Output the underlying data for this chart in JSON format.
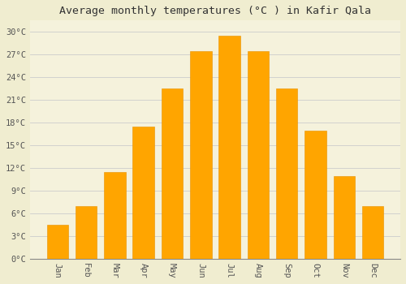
{
  "title": "Average monthly temperatures (°C ) in Kafir Qala",
  "months": [
    "Jan",
    "Feb",
    "Mar",
    "Apr",
    "May",
    "Jun",
    "Jul",
    "Aug",
    "Sep",
    "Oct",
    "Nov",
    "Dec"
  ],
  "values": [
    4.5,
    7.0,
    11.5,
    17.5,
    22.5,
    27.5,
    29.5,
    27.5,
    22.5,
    17.0,
    11.0,
    7.0
  ],
  "bar_color": "#FFA500",
  "bar_edge_color": "#E89000",
  "background_color": "#F0EDD0",
  "plot_bg_color": "#F5F2DC",
  "grid_color": "#CCCCCC",
  "ylim": [
    0,
    31.5
  ],
  "yticks": [
    0,
    3,
    6,
    9,
    12,
    15,
    18,
    21,
    24,
    27,
    30
  ],
  "ytick_labels": [
    "0°C",
    "3°C",
    "6°C",
    "9°C",
    "12°C",
    "15°C",
    "18°C",
    "21°C",
    "24°C",
    "27°C",
    "30°C"
  ],
  "title_fontsize": 9.5,
  "tick_fontsize": 7.5,
  "bar_width": 0.75
}
